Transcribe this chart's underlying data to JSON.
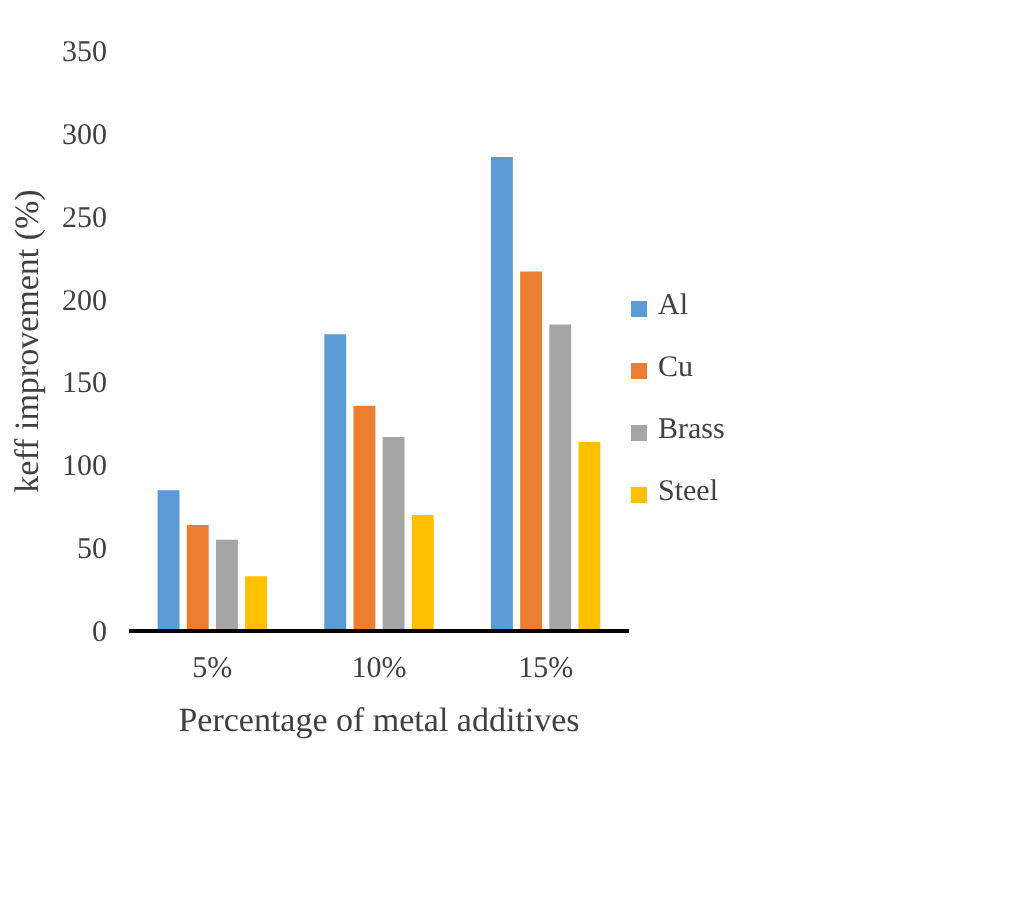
{
  "chart_data": {
    "type": "bar",
    "xlabel": "Percentage of metal additives",
    "ylabel": "keff improvement (%)",
    "categories": [
      "5%",
      "10%",
      "15%"
    ],
    "series": [
      {
        "name": "Al",
        "color": "#5b9bd5",
        "values": [
          85,
          179,
          286
        ]
      },
      {
        "name": "Cu",
        "color": "#ed7d31",
        "values": [
          64,
          136,
          217
        ]
      },
      {
        "name": "Brass",
        "color": "#a5a5a5",
        "values": [
          55,
          117,
          185
        ]
      },
      {
        "name": "Steel",
        "color": "#ffc000",
        "values": [
          33,
          70,
          114
        ]
      }
    ],
    "ylim": [
      0,
      350
    ],
    "yticks": [
      0,
      50,
      100,
      150,
      200,
      250,
      300,
      350
    ],
    "grid": false,
    "legend": "right"
  }
}
